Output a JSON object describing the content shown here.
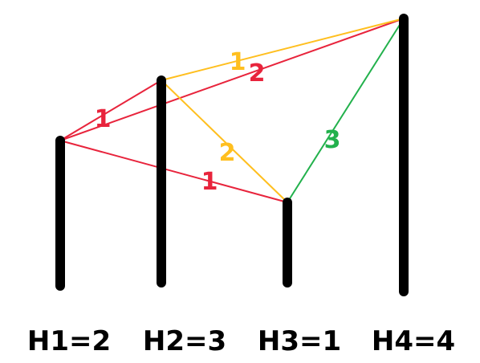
{
  "colors": {
    "red": "#e8243c",
    "orange": "#ffbf1f",
    "green": "#22b14c",
    "pole": "#000000"
  },
  "poles": [
    {
      "id": "h1",
      "label": "H1=2"
    },
    {
      "id": "h2",
      "label": "H2=3"
    },
    {
      "id": "h3",
      "label": "H3=1"
    },
    {
      "id": "h4",
      "label": "H4=4"
    }
  ],
  "edges": [
    {
      "id": "h1-h2",
      "label": "1",
      "color": "red"
    },
    {
      "id": "h1-h4",
      "label": "2",
      "color": "red"
    },
    {
      "id": "h1-h3",
      "label": "1",
      "color": "red"
    },
    {
      "id": "h2-h4",
      "label": "1",
      "color": "orange"
    },
    {
      "id": "h2-h3",
      "label": "2",
      "color": "orange"
    },
    {
      "id": "h3-h4",
      "label": "3",
      "color": "green"
    }
  ]
}
